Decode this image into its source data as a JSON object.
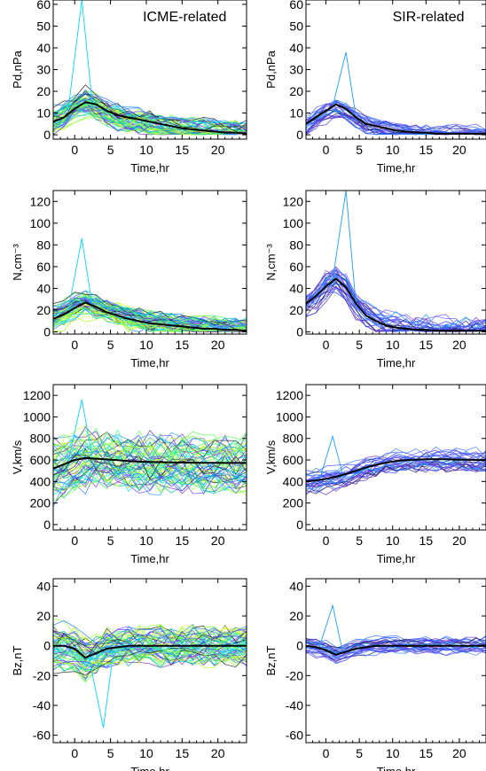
{
  "chart_data": [
    {
      "type": "line",
      "title": "ICME-related",
      "xlabel": "Time,hr",
      "ylabel": "Pd,nPa",
      "xlim": [
        -3,
        24
      ],
      "ylim": [
        -2,
        62
      ],
      "xticks": [
        "0",
        "5",
        "10",
        "15",
        "20"
      ],
      "yticks": [
        "0",
        "10",
        "20",
        "30",
        "40",
        "50",
        "60"
      ],
      "ensemble": {
        "base": [
          6,
          9,
          13,
          15,
          13,
          10,
          8,
          7,
          6,
          5,
          4,
          3,
          2.5,
          2,
          2,
          1.5,
          1,
          0.5,
          0.5
        ],
        "spread": 4,
        "peak": 62
      },
      "series": [
        {
          "values": [
            6,
            8,
            12,
            15,
            14,
            11,
            9,
            8,
            7,
            6,
            5,
            4,
            3,
            2.5,
            2,
            1.5,
            1,
            1,
            0.5
          ]
        }
      ]
    },
    {
      "type": "line",
      "title": "SIR-related",
      "xlabel": "Time,hr",
      "ylabel": "Pd,nPa",
      "xlim": [
        -3,
        24
      ],
      "ylim": [
        -2,
        62
      ],
      "xticks": [
        "0",
        "5",
        "10",
        "15",
        "20"
      ],
      "yticks": [
        "0",
        "10",
        "20",
        "30",
        "40",
        "50",
        "60"
      ],
      "ensemble": {
        "base": [
          5,
          8,
          11,
          13,
          11,
          8,
          5,
          4,
          3,
          2,
          1.5,
          1,
          1,
          0.5,
          0.5,
          0.5,
          0.5,
          0.5,
          0.5
        ],
        "spread": 3,
        "peak": 38
      },
      "series": [
        {
          "values": [
            5,
            8,
            11,
            14,
            12,
            8,
            5,
            4,
            3,
            2,
            1.5,
            1,
            1,
            0.5,
            0.5,
            0.5,
            0.5,
            0.5,
            0.5
          ]
        }
      ]
    },
    {
      "type": "line",
      "title": "",
      "xlabel": "Time,hr",
      "ylabel": "N,cm⁻³",
      "xlim": [
        -3,
        24
      ],
      "ylim": [
        -2,
        130
      ],
      "xticks": [
        "0",
        "5",
        "10",
        "15",
        "20"
      ],
      "yticks": [
        "0",
        "20",
        "40",
        "60",
        "80",
        "100",
        "120"
      ],
      "ensemble": {
        "base": [
          12,
          16,
          22,
          25,
          22,
          18,
          15,
          12,
          10,
          8,
          7,
          6,
          5,
          4,
          3,
          3,
          2,
          2,
          2
        ],
        "spread": 7,
        "peak": 86
      },
      "series": [
        {
          "values": [
            12,
            16,
            22,
            27,
            23,
            18,
            15,
            12,
            10,
            8,
            7,
            6,
            5,
            4,
            3,
            3,
            2,
            2,
            1
          ]
        }
      ]
    },
    {
      "type": "line",
      "title": "",
      "xlabel": "Time,hr",
      "ylabel": "N,cm⁻³",
      "xlim": [
        -3,
        24
      ],
      "ylim": [
        -2,
        130
      ],
      "xticks": [
        "0",
        "5",
        "10",
        "15",
        "20"
      ],
      "yticks": [
        "0",
        "20",
        "40",
        "60",
        "80",
        "100",
        "120"
      ],
      "ensemble": {
        "base": [
          26,
          32,
          42,
          48,
          40,
          25,
          15,
          10,
          6,
          4,
          3,
          2,
          2,
          1,
          1,
          1,
          1,
          1,
          1
        ],
        "spread": 9,
        "peak": 130
      },
      "series": [
        {
          "values": [
            26,
            33,
            42,
            49,
            41,
            26,
            15,
            10,
            6,
            4,
            3,
            2,
            2,
            1,
            1,
            1,
            1,
            1,
            1
          ]
        }
      ]
    },
    {
      "type": "line",
      "title": "",
      "xlabel": "Time,hr",
      "ylabel": "V,km/s",
      "xlim": [
        -3,
        24
      ],
      "ylim": [
        -50,
        1300
      ],
      "xticks": [
        "0",
        "5",
        "10",
        "15",
        "20"
      ],
      "yticks": [
        "0",
        "200",
        "400",
        "600",
        "800",
        "1000",
        "1200"
      ],
      "ensemble": {
        "base": [
          520,
          560,
          600,
          615,
          612,
          605,
          598,
          590,
          585,
          580,
          578,
          576,
          575,
          574,
          573,
          572,
          572,
          572,
          572
        ],
        "spread": 170,
        "peak": 1160
      },
      "series": [
        {
          "values": [
            520,
            560,
            600,
            618,
            612,
            605,
            598,
            590,
            585,
            582,
            580,
            578,
            576,
            575,
            574,
            573,
            572,
            572,
            572
          ]
        }
      ]
    },
    {
      "type": "line",
      "title": "",
      "xlabel": "Time,hr",
      "ylabel": "V,km/s",
      "xlim": [
        -3,
        24
      ],
      "ylim": [
        -50,
        1300
      ],
      "xticks": [
        "0",
        "5",
        "10",
        "15",
        "20"
      ],
      "yticks": [
        "0",
        "200",
        "400",
        "600",
        "800",
        "1000",
        "1200"
      ],
      "ensemble": {
        "base": [
          400,
          410,
          425,
          445,
          470,
          500,
          530,
          555,
          575,
          590,
          598,
          604,
          606,
          607,
          606,
          604,
          602,
          600,
          598
        ],
        "spread": 70,
        "peak": 820
      },
      "series": [
        {
          "values": [
            400,
            410,
            425,
            445,
            470,
            500,
            530,
            555,
            575,
            590,
            598,
            604,
            606,
            607,
            606,
            604,
            602,
            600,
            598
          ]
        }
      ]
    },
    {
      "type": "line",
      "title": "",
      "xlabel": "Time,hr",
      "ylabel": "Bz,nT",
      "xlim": [
        -3,
        24
      ],
      "ylim": [
        -65,
        45
      ],
      "xticks": [
        "0",
        "5",
        "10",
        "15",
        "20"
      ],
      "yticks": [
        "-60",
        "-40",
        "-20",
        "0",
        "20",
        "40"
      ],
      "ensemble": {
        "base": [
          0,
          0,
          -2,
          -8,
          -5,
          -2,
          -1,
          0,
          0,
          0,
          0,
          0,
          0,
          0,
          0,
          0,
          0,
          0,
          0
        ],
        "spread": 9,
        "peak": -55
      },
      "series": [
        {
          "values": [
            0,
            0,
            -2,
            -8,
            -5,
            -2,
            -1,
            0,
            0,
            0,
            0,
            0,
            0,
            0,
            0,
            0,
            0,
            0,
            0
          ]
        }
      ]
    },
    {
      "type": "line",
      "title": "",
      "xlabel": "Time,hr",
      "ylabel": "Bz,nT",
      "xlim": [
        -3,
        24
      ],
      "ylim": [
        -65,
        45
      ],
      "xticks": [
        "0",
        "5",
        "10",
        "15",
        "20"
      ],
      "yticks": [
        "-60",
        "-40",
        "-20",
        "0",
        "20",
        "40"
      ],
      "ensemble": {
        "base": [
          0,
          -1,
          -3,
          -6,
          -4,
          -2,
          -1,
          0,
          0,
          0,
          0,
          0,
          0,
          0,
          0,
          0,
          0,
          0,
          0
        ],
        "spread": 4,
        "peak": 27
      },
      "series": [
        {
          "values": [
            0,
            -1,
            -3,
            -6,
            -4,
            -2,
            -1,
            0,
            0,
            0,
            0,
            0,
            0,
            0,
            0,
            0,
            0,
            0,
            0
          ]
        }
      ]
    }
  ]
}
